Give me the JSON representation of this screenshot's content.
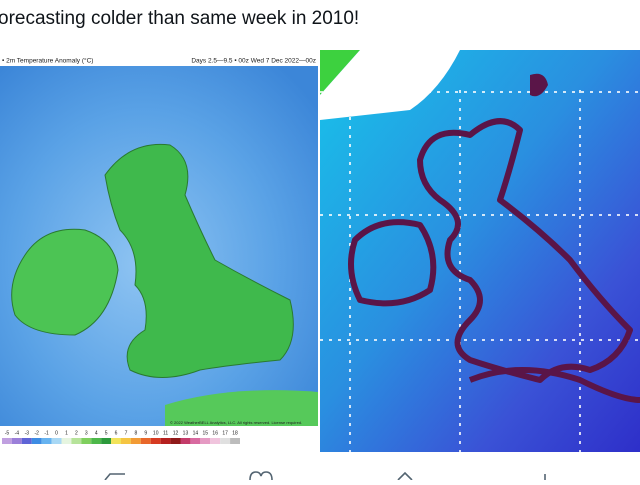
{
  "tweet": {
    "text": "orecasting colder than same week in 2010!"
  },
  "left_image": {
    "title": "• 2m Temperature Anomaly (°C)",
    "subtitle": "Days 2.5—9.5 • 00z Wed 7 Dec 2022—00z",
    "credit": "© 2022 WeatherBELL Analytics, LLC. All rights reserved. License required.",
    "colorbar": [
      "-5",
      "-4",
      "-3",
      "-2",
      "-1",
      "0",
      "1",
      "2",
      "3",
      "4",
      "5",
      "6",
      "7",
      "8",
      "9",
      "10",
      "11",
      "12",
      "13",
      "14",
      "15",
      "16",
      "17",
      "18"
    ]
  }
}
